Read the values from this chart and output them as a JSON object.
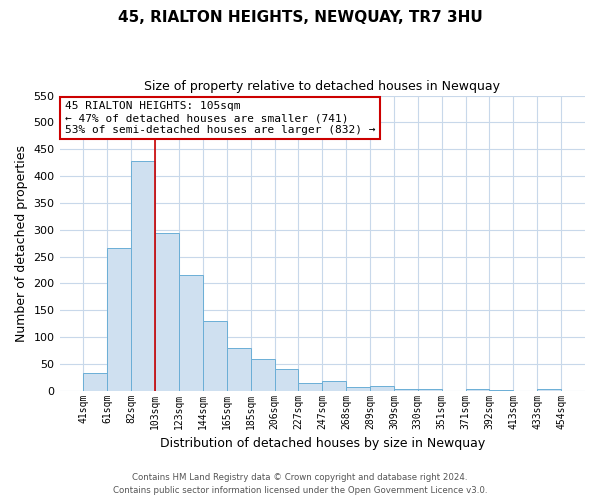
{
  "title": "45, RIALTON HEIGHTS, NEWQUAY, TR7 3HU",
  "subtitle": "Size of property relative to detached houses in Newquay",
  "xlabel": "Distribution of detached houses by size in Newquay",
  "ylabel": "Number of detached properties",
  "bar_labels": [
    "41sqm",
    "61sqm",
    "82sqm",
    "103sqm",
    "123sqm",
    "144sqm",
    "165sqm",
    "185sqm",
    "206sqm",
    "227sqm",
    "247sqm",
    "268sqm",
    "289sqm",
    "309sqm",
    "330sqm",
    "351sqm",
    "371sqm",
    "392sqm",
    "413sqm",
    "433sqm",
    "454sqm"
  ],
  "bar_values": [
    32,
    265,
    428,
    293,
    215,
    130,
    79,
    59,
    40,
    14,
    18,
    6,
    9,
    3,
    3,
    0,
    3,
    1,
    0,
    3
  ],
  "bar_color": "#cfe0f0",
  "bar_edge_color": "#6baed6",
  "vline_color": "#cc0000",
  "annotation_title": "45 RIALTON HEIGHTS: 105sqm",
  "annotation_line1": "← 47% of detached houses are smaller (741)",
  "annotation_line2": "53% of semi-detached houses are larger (832) →",
  "annotation_box_color": "#ffffff",
  "annotation_box_edge": "#cc0000",
  "ylim": [
    0,
    550
  ],
  "yticks": [
    0,
    50,
    100,
    150,
    200,
    250,
    300,
    350,
    400,
    450,
    500,
    550
  ],
  "footer1": "Contains HM Land Registry data © Crown copyright and database right 2024.",
  "footer2": "Contains public sector information licensed under the Open Government Licence v3.0.",
  "bg_color": "#ffffff",
  "grid_color": "#c8d8ea"
}
